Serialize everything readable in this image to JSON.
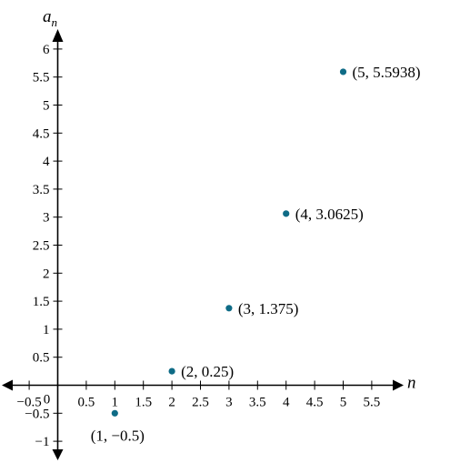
{
  "chart_data": {
    "type": "scatter",
    "xlabel": "n",
    "ylabel_main": "a",
    "ylabel_sub": "n",
    "xlim": [
      -0.5,
      5.5
    ],
    "ylim": [
      -1,
      6
    ],
    "grid": false,
    "x_ticks": [
      {
        "value": -0.5,
        "label": "−0.5"
      },
      {
        "value": 0.5,
        "label": "0.5"
      },
      {
        "value": 1,
        "label": "1"
      },
      {
        "value": 1.5,
        "label": "1.5"
      },
      {
        "value": 2,
        "label": "2"
      },
      {
        "value": 2.5,
        "label": "2.5"
      },
      {
        "value": 3,
        "label": "3"
      },
      {
        "value": 3.5,
        "label": "3.5"
      },
      {
        "value": 4,
        "label": "4"
      },
      {
        "value": 4.5,
        "label": "4.5"
      },
      {
        "value": 5,
        "label": "5"
      },
      {
        "value": 5.5,
        "label": "5.5"
      }
    ],
    "y_ticks": [
      {
        "value": -1,
        "label": "−1"
      },
      {
        "value": -0.5,
        "label": "−0.5"
      },
      {
        "value": 0.5,
        "label": "0.5"
      },
      {
        "value": 1,
        "label": "1"
      },
      {
        "value": 1.5,
        "label": "1.5"
      },
      {
        "value": 2,
        "label": "2"
      },
      {
        "value": 2.5,
        "label": "2.5"
      },
      {
        "value": 3,
        "label": "3"
      },
      {
        "value": 3.5,
        "label": "3.5"
      },
      {
        "value": 4,
        "label": "4"
      },
      {
        "value": 4.5,
        "label": "4.5"
      },
      {
        "value": 5,
        "label": "5"
      },
      {
        "value": 5.5,
        "label": "5.5"
      },
      {
        "value": 6,
        "label": "6"
      }
    ],
    "origin_label": "0",
    "series": [
      {
        "color": "#0e6b86",
        "points": [
          {
            "x": 1,
            "y": -0.5,
            "label": "(1, −0.5)",
            "label_position": "below"
          },
          {
            "x": 2,
            "y": 0.25,
            "label": "(2, 0.25)",
            "label_position": "right"
          },
          {
            "x": 3,
            "y": 1.375,
            "label": "(3, 1.375)",
            "label_position": "right"
          },
          {
            "x": 4,
            "y": 3.0625,
            "label": "(4, 3.0625)",
            "label_position": "right"
          },
          {
            "x": 5,
            "y": 5.5938,
            "label": "(5, 5.5938)",
            "label_position": "right"
          }
        ]
      }
    ]
  }
}
